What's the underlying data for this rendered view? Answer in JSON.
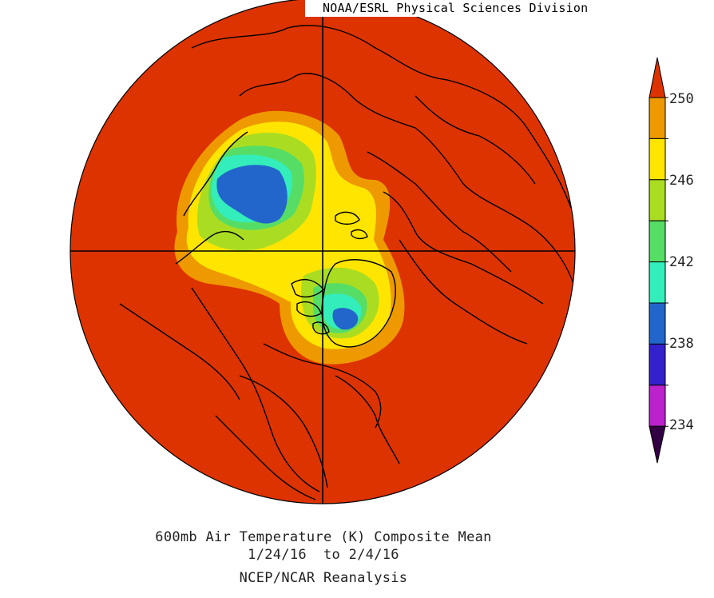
{
  "header": {
    "credit": "NOAA/ESRL Physical Sciences Division"
  },
  "caption": {
    "line1": "600mb Air Temperature (K) Composite Mean",
    "line2": "1/24/16  to 2/4/16",
    "line3": "NCEP/NCAR Reanalysis"
  },
  "colorbar": {
    "labels": [
      "250",
      "246",
      "242",
      "238",
      "234"
    ],
    "bands": [
      {
        "color": "#dd3300"
      },
      {
        "color": "#ee9900"
      },
      {
        "color": "#ffe500"
      },
      {
        "color": "#aadd22"
      },
      {
        "color": "#55dd66"
      },
      {
        "color": "#33eebb"
      },
      {
        "color": "#2266cc"
      },
      {
        "color": "#3322cc"
      },
      {
        "color": "#bb22cc"
      },
      {
        "color": "#330044"
      }
    ]
  },
  "map": {
    "projection": "north polar stereographic",
    "background_color": "#dd3300",
    "outline_color": "#000000"
  }
}
